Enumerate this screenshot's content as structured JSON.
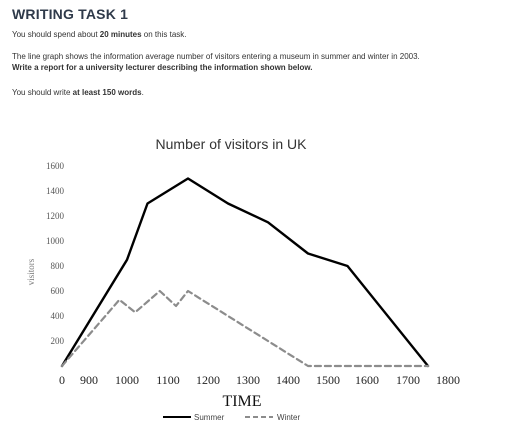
{
  "task": {
    "heading": "WRITING TASK 1",
    "line1_pre": "You should spend about ",
    "line1_bold": "20 minutes",
    "line1_post": " on this task.",
    "line2": "The line graph shows the information average number of visitors entering a museum in summer and winter in 2003.",
    "line3": "Write a report for a university lecturer describing the information shown below.",
    "line4_pre": "You should write ",
    "line4_bold": "at least 150 words",
    "line4_post": "."
  },
  "chart_data": {
    "type": "line",
    "title": "Number of visitors in UK",
    "xlabel": "TIME",
    "ylabel": "visitors",
    "x_ticks": [
      "0",
      "900",
      "1000",
      "1100",
      "1200",
      "1300",
      "1400",
      "1500",
      "1600",
      "1700",
      "1800"
    ],
    "y_ticks": [
      "200",
      "400",
      "600",
      "800",
      "1000",
      "1200",
      "1400",
      "1600"
    ],
    "ylim": [
      0,
      1600
    ],
    "grid": false,
    "legend_position": "bottom",
    "colors": {
      "summer": "#000000",
      "winter": "#8c8c8c"
    },
    "series": [
      {
        "name": "Summer",
        "style": "solid",
        "x": [
          "0",
          "1000",
          "1050",
          "1150",
          "1250",
          "1350",
          "1450",
          "1550",
          "1750"
        ],
        "values": [
          0,
          850,
          1300,
          1500,
          1300,
          1150,
          900,
          800,
          0
        ]
      },
      {
        "name": "Winter",
        "style": "dashed",
        "x": [
          "0",
          "980",
          "1020",
          "1080",
          "1120",
          "1150",
          "1350",
          "1450",
          "1750"
        ],
        "values": [
          0,
          530,
          430,
          600,
          480,
          600,
          200,
          0,
          0
        ]
      }
    ]
  }
}
